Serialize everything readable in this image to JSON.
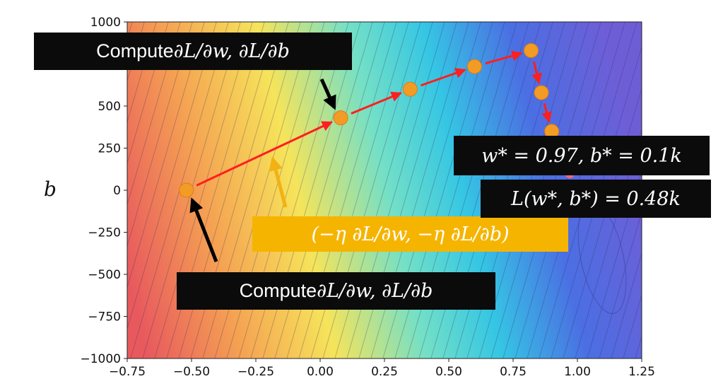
{
  "chart_data": {
    "type": "contour",
    "xlabel": "",
    "ylabel": "b",
    "xlim": [
      -0.75,
      1.25
    ],
    "ylim": [
      -1000,
      1000
    ],
    "xticks": [
      "−0.75",
      "−0.50",
      "−0.25",
      "0.00",
      "0.25",
      "0.50",
      "0.75",
      "1.00",
      "1.25"
    ],
    "xtick_values": [
      -0.75,
      -0.5,
      -0.25,
      0.0,
      0.25,
      0.5,
      0.75,
      1.0,
      1.25
    ],
    "yticks": [
      "1000",
      "750",
      "500",
      "250",
      "0",
      "−250",
      "−500",
      "−750",
      "−1000"
    ],
    "ytick_values": [
      1000,
      750,
      500,
      250,
      0,
      -250,
      -500,
      -750,
      -1000
    ],
    "path": [
      {
        "w": -0.52,
        "b": 0
      },
      {
        "w": 0.08,
        "b": 430
      },
      {
        "w": 0.35,
        "b": 600
      },
      {
        "w": 0.6,
        "b": 735
      },
      {
        "w": 0.82,
        "b": 830
      },
      {
        "w": 0.86,
        "b": 580
      },
      {
        "w": 0.9,
        "b": 350
      }
    ],
    "optimum": {
      "w": 0.97,
      "b": 100
    },
    "minimum_region": {
      "w": 1.03,
      "b": -430
    },
    "colors": {
      "path_arrow": "#ff1f1f",
      "point_fill": "#f39c25",
      "optimum": "#e81010",
      "black_arrow": "#000000",
      "yellow_arrow": "#f2b213",
      "callout_black": "#0b0b0b",
      "callout_yellow": "#f5b400",
      "colormap_stops": [
        "#e8595e",
        "#f5a352",
        "#f6e45a",
        "#74e0c6",
        "#35c6e4",
        "#4b6fe3",
        "#6e5ed6"
      ]
    }
  },
  "callouts": {
    "top_label": {
      "prefix": "Compute ",
      "math": "∂L/∂w, ∂L/∂b"
    },
    "bottom_label": {
      "prefix": "Compute ",
      "math": "∂L/∂w, ∂L/∂b"
    },
    "step_label": "(−η ∂L/∂w, −η ∂L/∂b)",
    "optimum_label": "w* = 0.97, b* = 0.1k",
    "loss_label": "L(w*, b*) = 0.48k"
  }
}
